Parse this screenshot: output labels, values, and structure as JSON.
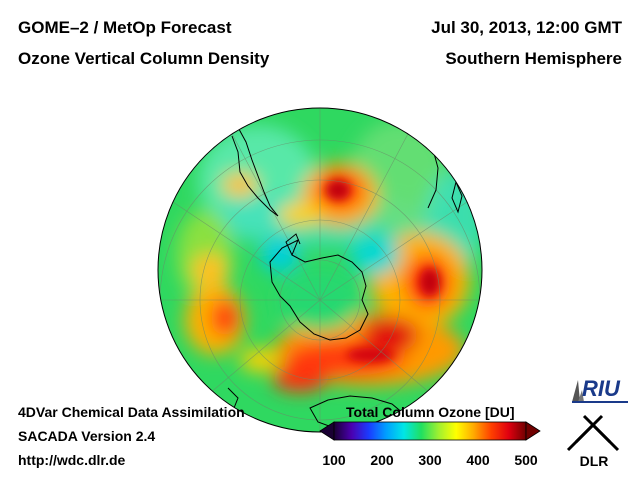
{
  "header": {
    "title_line1": "GOME–2 / MetOp Forecast",
    "title_line2": "Ozone Vertical Column Density",
    "date": "Jul 30, 2013, 12:00 GMT",
    "hemisphere": "Southern Hemisphere"
  },
  "footer": {
    "line1": "4DVar Chemical Data Assimilation",
    "line2": "SACADA Version 2.4",
    "line3": "http://wdc.dlr.de"
  },
  "colorbar": {
    "title": "Total Column Ozone [DU]",
    "ticks": [
      "100",
      "200",
      "300",
      "400",
      "500"
    ],
    "colors": [
      "#1a0033",
      "#4b00b0",
      "#1a3cff",
      "#00a0ff",
      "#00e6e6",
      "#20e060",
      "#a0f030",
      "#ffff00",
      "#ffaa00",
      "#ff4000",
      "#e00010",
      "#700000"
    ]
  },
  "map": {
    "projection": "orthographic",
    "pole": "south"
  },
  "logos": {
    "riu": "RIU",
    "dlr": "DLR"
  }
}
